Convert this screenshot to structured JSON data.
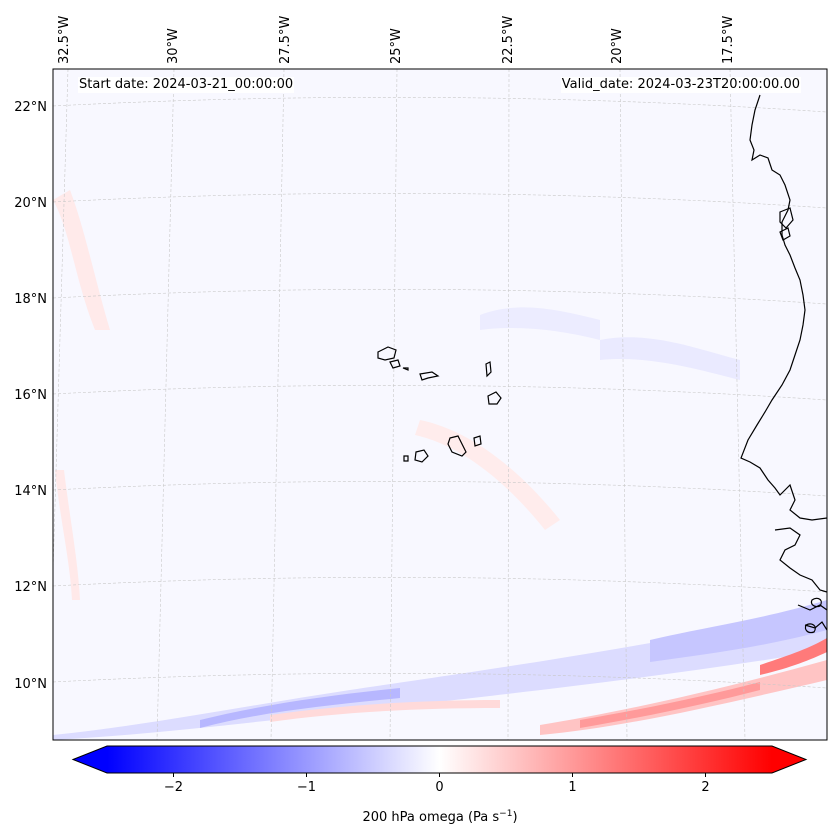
{
  "header": {
    "start_date": "Start date: 2024-03-21_00:00:00",
    "valid_date": "Valid_date: 2024-03-23T20:00:00.00"
  },
  "map": {
    "projection": "Lambert conformal",
    "extent": {
      "lon_min": -33,
      "lon_max": -15.5,
      "lat_min": 9,
      "lat_max": 22.8
    },
    "lon_ticks": [
      {
        "value": -32.5,
        "label": "32.5°W"
      },
      {
        "value": -30,
        "label": "30°W"
      },
      {
        "value": -27.5,
        "label": "27.5°W"
      },
      {
        "value": -25,
        "label": "25°W"
      },
      {
        "value": -22.5,
        "label": "22.5°W"
      },
      {
        "value": -20,
        "label": "20°W"
      },
      {
        "value": -17.5,
        "label": "17.5°W"
      }
    ],
    "lat_ticks": [
      {
        "value": 22,
        "label": "22°N"
      },
      {
        "value": 20,
        "label": "20°N"
      },
      {
        "value": 18,
        "label": "18°N"
      },
      {
        "value": 16,
        "label": "16°N"
      },
      {
        "value": 14,
        "label": "14°N"
      },
      {
        "value": 12,
        "label": "12°N"
      },
      {
        "value": 10,
        "label": "10°N"
      }
    ],
    "features": [
      "Cape Verde islands",
      "West African coastline (Mauritania, Senegal, Gambia, Guinea-Bissau)"
    ]
  },
  "colorbar": {
    "label": "200 hPa omega (Pa s",
    "label_superscript": "−1",
    "label_close": ")",
    "tick_labels": [
      "−2",
      "−1",
      "0",
      "1",
      "2"
    ],
    "tick_values": [
      -2,
      -1,
      0,
      1,
      2
    ],
    "vmin": -2.5,
    "vmax": 2.5,
    "extend": "both",
    "colormap": "bwr",
    "color_low": "#0000ff",
    "color_mid": "#ffffff",
    "color_high": "#ff0000"
  },
  "chart_data": {
    "type": "heatmap",
    "title": "",
    "variable": "200 hPa omega",
    "units": "Pa s-1",
    "range": [
      -2.5,
      2.5
    ],
    "colorbar_ticks": [
      -2,
      -1,
      0,
      1,
      2
    ],
    "notable_features": [
      {
        "description": "strong negative band (blue)",
        "lat": 9.5,
        "lon_range": [
          -31,
          -15.5
        ],
        "approx_value": -0.8
      },
      {
        "description": "strong positive band (red)",
        "lat": 9.3,
        "lon_range": [
          -22,
          -16
        ],
        "approx_value": 0.9
      },
      {
        "description": "positive streak near African coast",
        "lat": 10.5,
        "lon": -16,
        "approx_value": 1.5
      },
      {
        "description": "weak positive (pink) band along western edge",
        "lat_range": [
          12,
          20
        ],
        "lon": -32.5,
        "approx_value": 0.3
      }
    ]
  }
}
